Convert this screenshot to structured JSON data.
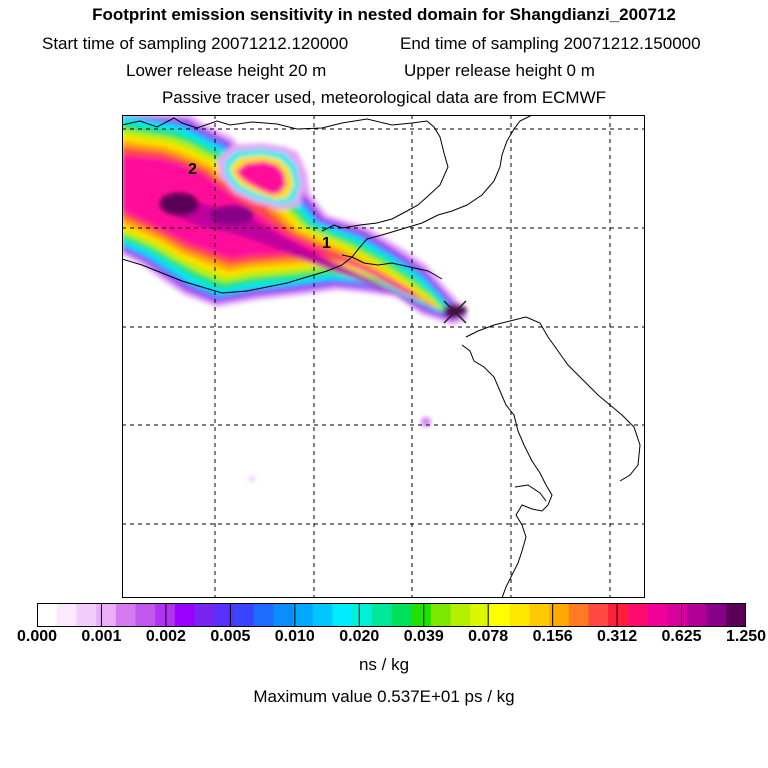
{
  "header": {
    "title": "Footprint emission sensitivity in nested domain for Shangdianzi_200712",
    "start_label": "Start time of sampling 20071212.120000",
    "end_label": "End time of sampling 20071212.150000",
    "lower_label": "Lower release height   20 m",
    "upper_label": "Upper release height    0 m",
    "tracer_label": "Passive tracer used, meteorological data are from ECMWF"
  },
  "map": {
    "labels": [
      "1",
      "2"
    ],
    "receptor": "Shangdianzi"
  },
  "colorbar": {
    "ticks": [
      "0.000",
      "0.001",
      "0.002",
      "0.005",
      "0.010",
      "0.020",
      "0.039",
      "0.078",
      "0.156",
      "0.312",
      "0.625",
      "1.250"
    ],
    "units": "ns / kg",
    "colors": [
      "#ffffff",
      "#fbe9ff",
      "#f2cdfb",
      "#e9b0f8",
      "#d77af2",
      "#c058ee",
      "#b132f0",
      "#9a00ff",
      "#7a24f0",
      "#5a30ff",
      "#3a44ff",
      "#1e6cff",
      "#0b8cff",
      "#00a8ff",
      "#00c8ff",
      "#00ecff",
      "#00f0d8",
      "#00e89c",
      "#00e05a",
      "#22e000",
      "#7ce800",
      "#b4f000",
      "#dcf800",
      "#ffff00",
      "#ffe800",
      "#ffc800",
      "#ffa800",
      "#ff7a22",
      "#ff4a44",
      "#ff1e3c",
      "#ff0a6e",
      "#f2009a",
      "#d8009e",
      "#b00098",
      "#880088",
      "#5a0058"
    ]
  },
  "maximum_label": "Maximum value  0.537E+01 ps / kg"
}
